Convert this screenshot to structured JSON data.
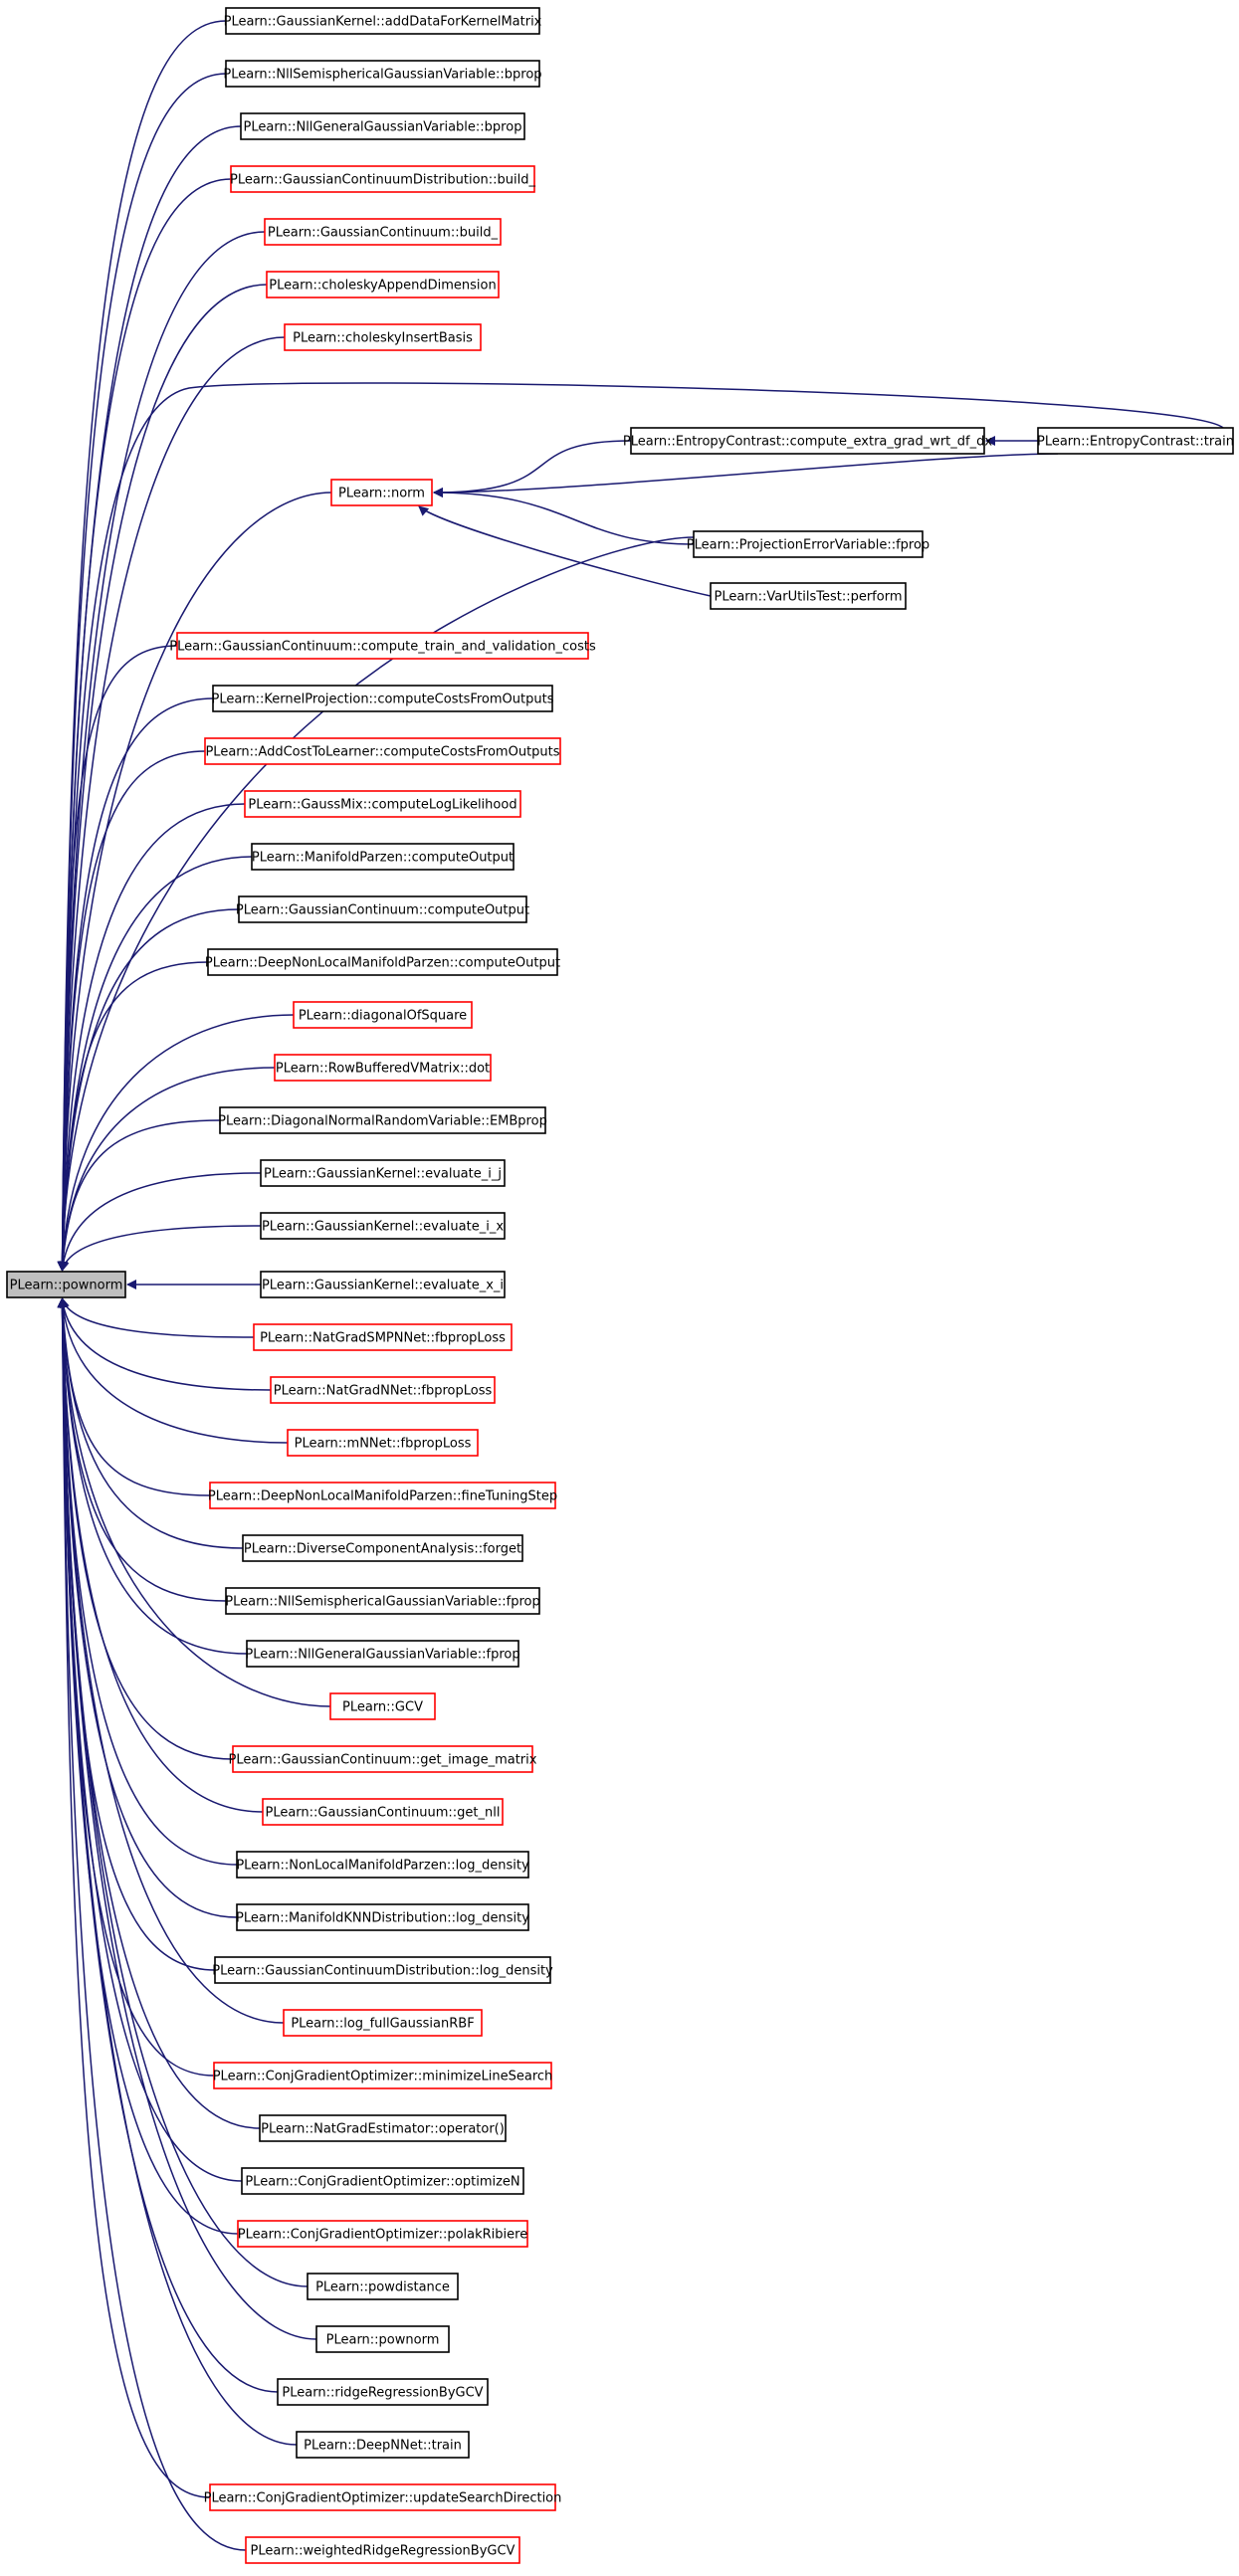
{
  "graph": {
    "root": "PLearn::pownorm",
    "colors": {
      "edge": "#191970",
      "documented_border": "#000000",
      "undocumented_border": "#ff0000",
      "root_fill": "#bfbfbf"
    },
    "nodes": [
      {
        "id": "root",
        "label": "PLearn::pownorm",
        "style": "root"
      },
      {
        "id": "n1",
        "label": "PLearn::GaussianKernel::addDataForKernelMatrix",
        "style": "black"
      },
      {
        "id": "n2",
        "label": "PLearn::NllSemisphericalGaussianVariable::bprop",
        "style": "black"
      },
      {
        "id": "n3",
        "label": "PLearn::NllGeneralGaussianVariable::bprop",
        "style": "black"
      },
      {
        "id": "n4",
        "label": "PLearn::GaussianContinuumDistribution::build_",
        "style": "red"
      },
      {
        "id": "n5",
        "label": "PLearn::GaussianContinuum::build_",
        "style": "red"
      },
      {
        "id": "n6",
        "label": "PLearn::choleskyAppendDimension",
        "style": "red"
      },
      {
        "id": "n7",
        "label": "PLearn::choleskyInsertBasis",
        "style": "red"
      },
      {
        "id": "ec",
        "label": "PLearn::EntropyContrast::compute_extra_grad_wrt_df_dx",
        "style": "black"
      },
      {
        "id": "et",
        "label": "PLearn::EntropyContrast::train",
        "style": "black"
      },
      {
        "id": "nm",
        "label": "PLearn::norm",
        "style": "red"
      },
      {
        "id": "pe",
        "label": "PLearn::ProjectionErrorVariable::fprop",
        "style": "black"
      },
      {
        "id": "vu",
        "label": "PLearn::VarUtilsTest::perform",
        "style": "black"
      },
      {
        "id": "n8",
        "label": "PLearn::GaussianContinuum::compute_train_and_validation_costs",
        "style": "red"
      },
      {
        "id": "n9",
        "label": "PLearn::KernelProjection::computeCostsFromOutputs",
        "style": "black"
      },
      {
        "id": "n10",
        "label": "PLearn::AddCostToLearner::computeCostsFromOutputs",
        "style": "red"
      },
      {
        "id": "n11",
        "label": "PLearn::GaussMix::computeLogLikelihood",
        "style": "red"
      },
      {
        "id": "n12",
        "label": "PLearn::ManifoldParzen::computeOutput",
        "style": "black"
      },
      {
        "id": "n13",
        "label": "PLearn::GaussianContinuum::computeOutput",
        "style": "black"
      },
      {
        "id": "n14",
        "label": "PLearn::DeepNonLocalManifoldParzen::computeOutput",
        "style": "black"
      },
      {
        "id": "n15",
        "label": "PLearn::diagonalOfSquare",
        "style": "red"
      },
      {
        "id": "n16",
        "label": "PLearn::RowBufferedVMatrix::dot",
        "style": "red"
      },
      {
        "id": "n17",
        "label": "PLearn::DiagonalNormalRandomVariable::EMBprop",
        "style": "black"
      },
      {
        "id": "n18",
        "label": "PLearn::GaussianKernel::evaluate_i_j",
        "style": "black"
      },
      {
        "id": "n19",
        "label": "PLearn::GaussianKernel::evaluate_i_x",
        "style": "black"
      },
      {
        "id": "n20",
        "label": "PLearn::GaussianKernel::evaluate_x_i",
        "style": "black"
      },
      {
        "id": "n21",
        "label": "PLearn::NatGradSMPNNet::fbpropLoss",
        "style": "red"
      },
      {
        "id": "n22",
        "label": "PLearn::NatGradNNet::fbpropLoss",
        "style": "red"
      },
      {
        "id": "n23",
        "label": "PLearn::mNNet::fbpropLoss",
        "style": "red"
      },
      {
        "id": "n24",
        "label": "PLearn::DeepNonLocalManifoldParzen::fineTuningStep",
        "style": "red"
      },
      {
        "id": "n25",
        "label": "PLearn::DiverseComponentAnalysis::forget",
        "style": "black"
      },
      {
        "id": "n26",
        "label": "PLearn::NllSemisphericalGaussianVariable::fprop",
        "style": "black"
      },
      {
        "id": "n27",
        "label": "PLearn::NllGeneralGaussianVariable::fprop",
        "style": "black"
      },
      {
        "id": "n28",
        "label": "PLearn::GCV",
        "style": "red"
      },
      {
        "id": "n29",
        "label": "PLearn::GaussianContinuum::get_image_matrix",
        "style": "red"
      },
      {
        "id": "n30",
        "label": "PLearn::GaussianContinuum::get_nll",
        "style": "red"
      },
      {
        "id": "n31",
        "label": "PLearn::NonLocalManifoldParzen::log_density",
        "style": "black"
      },
      {
        "id": "n32",
        "label": "PLearn::ManifoldKNNDistribution::log_density",
        "style": "black"
      },
      {
        "id": "n33",
        "label": "PLearn::GaussianContinuumDistribution::log_density",
        "style": "black"
      },
      {
        "id": "n34",
        "label": "PLearn::log_fullGaussianRBF",
        "style": "red"
      },
      {
        "id": "n35",
        "label": "PLearn::ConjGradientOptimizer::minimizeLineSearch",
        "style": "red"
      },
      {
        "id": "n36",
        "label": "PLearn::NatGradEstimator::operator()",
        "style": "black"
      },
      {
        "id": "n37",
        "label": "PLearn::ConjGradientOptimizer::optimizeN",
        "style": "black"
      },
      {
        "id": "n38",
        "label": "PLearn::ConjGradientOptimizer::polakRibiere",
        "style": "red"
      },
      {
        "id": "n39",
        "label": "PLearn::powdistance",
        "style": "black"
      },
      {
        "id": "n40",
        "label": "PLearn::pownorm",
        "style": "black"
      },
      {
        "id": "n41",
        "label": "PLearn::ridgeRegressionByGCV",
        "style": "black"
      },
      {
        "id": "n42",
        "label": "PLearn::DeepNNet::train",
        "style": "black"
      },
      {
        "id": "n43",
        "label": "PLearn::ConjGradientOptimizer::updateSearchDirection",
        "style": "red"
      },
      {
        "id": "n44",
        "label": "PLearn::weightedRidgeRegressionByGCV",
        "style": "red"
      }
    ],
    "edges": [
      {
        "from": "n1",
        "to": "root"
      },
      {
        "from": "n2",
        "to": "root"
      },
      {
        "from": "n3",
        "to": "root"
      },
      {
        "from": "n4",
        "to": "root"
      },
      {
        "from": "n5",
        "to": "root"
      },
      {
        "from": "n6",
        "to": "root"
      },
      {
        "from": "n7",
        "to": "root"
      },
      {
        "from": "et",
        "to": "root"
      },
      {
        "from": "nm",
        "to": "root"
      },
      {
        "from": "pe",
        "to": "root"
      },
      {
        "from": "n8",
        "to": "root"
      },
      {
        "from": "n9",
        "to": "root"
      },
      {
        "from": "n10",
        "to": "root"
      },
      {
        "from": "n11",
        "to": "root"
      },
      {
        "from": "n12",
        "to": "root"
      },
      {
        "from": "n13",
        "to": "root"
      },
      {
        "from": "n14",
        "to": "root"
      },
      {
        "from": "n15",
        "to": "root"
      },
      {
        "from": "n16",
        "to": "root"
      },
      {
        "from": "n17",
        "to": "root"
      },
      {
        "from": "n18",
        "to": "root"
      },
      {
        "from": "n19",
        "to": "root"
      },
      {
        "from": "n20",
        "to": "root"
      },
      {
        "from": "n21",
        "to": "root"
      },
      {
        "from": "n22",
        "to": "root"
      },
      {
        "from": "n23",
        "to": "root"
      },
      {
        "from": "n24",
        "to": "root"
      },
      {
        "from": "n25",
        "to": "root"
      },
      {
        "from": "n26",
        "to": "root"
      },
      {
        "from": "n27",
        "to": "root"
      },
      {
        "from": "n28",
        "to": "root"
      },
      {
        "from": "n29",
        "to": "root"
      },
      {
        "from": "n30",
        "to": "root"
      },
      {
        "from": "n31",
        "to": "root"
      },
      {
        "from": "n32",
        "to": "root"
      },
      {
        "from": "n33",
        "to": "root"
      },
      {
        "from": "n34",
        "to": "root"
      },
      {
        "from": "n35",
        "to": "root"
      },
      {
        "from": "n36",
        "to": "root"
      },
      {
        "from": "n37",
        "to": "root"
      },
      {
        "from": "n38",
        "to": "root"
      },
      {
        "from": "n39",
        "to": "root"
      },
      {
        "from": "n40",
        "to": "root"
      },
      {
        "from": "n41",
        "to": "root"
      },
      {
        "from": "n42",
        "to": "root"
      },
      {
        "from": "n43",
        "to": "root"
      },
      {
        "from": "n44",
        "to": "root"
      },
      {
        "from": "ec",
        "to": "nm"
      },
      {
        "from": "et",
        "to": "nm"
      },
      {
        "from": "pe",
        "to": "nm"
      },
      {
        "from": "vu",
        "to": "nm"
      },
      {
        "from": "et",
        "to": "ec"
      }
    ]
  }
}
